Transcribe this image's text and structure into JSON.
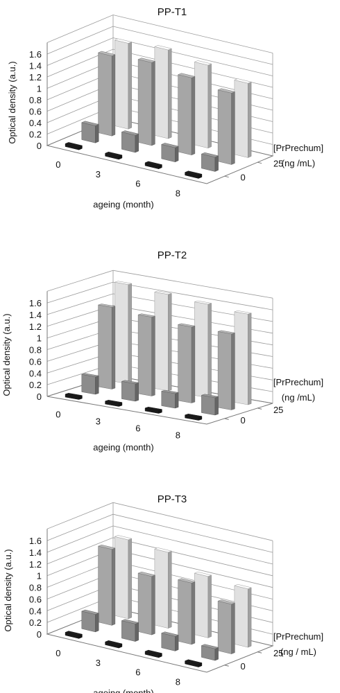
{
  "chart_data": [
    {
      "type": "bar",
      "subtype": "3d-column",
      "title": "PP-T1",
      "xlabel": "ageing (month)",
      "ylabel": "Optical density (a.u.)",
      "zlabel": [
        "[PrPrechum]",
        "(ng /mL)"
      ],
      "categories": [
        "0",
        "3",
        "6",
        "8"
      ],
      "yticks": [
        "0",
        "0.2",
        "0.4",
        "0.6",
        "0.8",
        "1",
        "1.2",
        "1.4",
        "1.6"
      ],
      "ylim": [
        0,
        1.8
      ],
      "series": [
        {
          "values": [
            0.05,
            0.05,
            0.05,
            0.05
          ],
          "color": "#1a1a1a"
        },
        {
          "label": "0",
          "values": [
            0.3,
            0.3,
            0.25,
            0.25
          ],
          "color": "#8c8c8c"
        },
        {
          "values": [
            1.4,
            1.45,
            1.35,
            1.25
          ],
          "color": "#a6a6a6"
        },
        {
          "label": "25",
          "values": [
            1.5,
            1.55,
            1.45,
            1.3
          ],
          "color": "#e0e0e0"
        }
      ],
      "grid": true
    },
    {
      "type": "bar",
      "subtype": "3d-column",
      "title": "PP-T2",
      "xlabel": "ageing (month)",
      "ylabel": "Optical density (a.u.)",
      "zlabel": [
        "[PrPrechum]",
        "(ng /mL)"
      ],
      "categories": [
        "0",
        "3",
        "6",
        "8"
      ],
      "yticks": [
        "0",
        "0.2",
        "0.4",
        "0.6",
        "0.8",
        "1",
        "1.2",
        "1.4",
        "1.6"
      ],
      "ylim": [
        0,
        1.8
      ],
      "series": [
        {
          "values": [
            0.05,
            0.05,
            0.05,
            0.05
          ],
          "color": "#1a1a1a"
        },
        {
          "label": "0",
          "values": [
            0.3,
            0.3,
            0.25,
            0.3
          ],
          "color": "#8c8c8c"
        },
        {
          "values": [
            1.4,
            1.35,
            1.3,
            1.3
          ],
          "color": "#a6a6a6"
        },
        {
          "label": "25",
          "values": [
            1.7,
            1.65,
            1.6,
            1.55
          ],
          "color": "#e0e0e0"
        }
      ],
      "grid": true
    },
    {
      "type": "bar",
      "subtype": "3d-column",
      "title": "PP-T3",
      "xlabel": "ageing (month)",
      "ylabel": "Optical density (a.u.)",
      "zlabel": [
        "[PrPrechum]",
        "(ng / mL)"
      ],
      "categories": [
        "0",
        "3",
        "6",
        "8"
      ],
      "yticks": [
        "0",
        "0.2",
        "0.4",
        "0.6",
        "0.8",
        "1",
        "1.2",
        "1.4",
        "1.6"
      ],
      "ylim": [
        0,
        1.8
      ],
      "series": [
        {
          "values": [
            0.05,
            0.05,
            0.05,
            0.05
          ],
          "color": "#1a1a1a"
        },
        {
          "label": "0",
          "values": [
            0.3,
            0.3,
            0.25,
            0.2
          ],
          "color": "#8c8c8c"
        },
        {
          "values": [
            1.3,
            1.0,
            1.05,
            0.85
          ],
          "color": "#a6a6a6"
        },
        {
          "label": "25",
          "values": [
            1.35,
            1.3,
            1.05,
            1.0
          ],
          "color": "#e0e0e0"
        }
      ],
      "grid": true
    }
  ]
}
